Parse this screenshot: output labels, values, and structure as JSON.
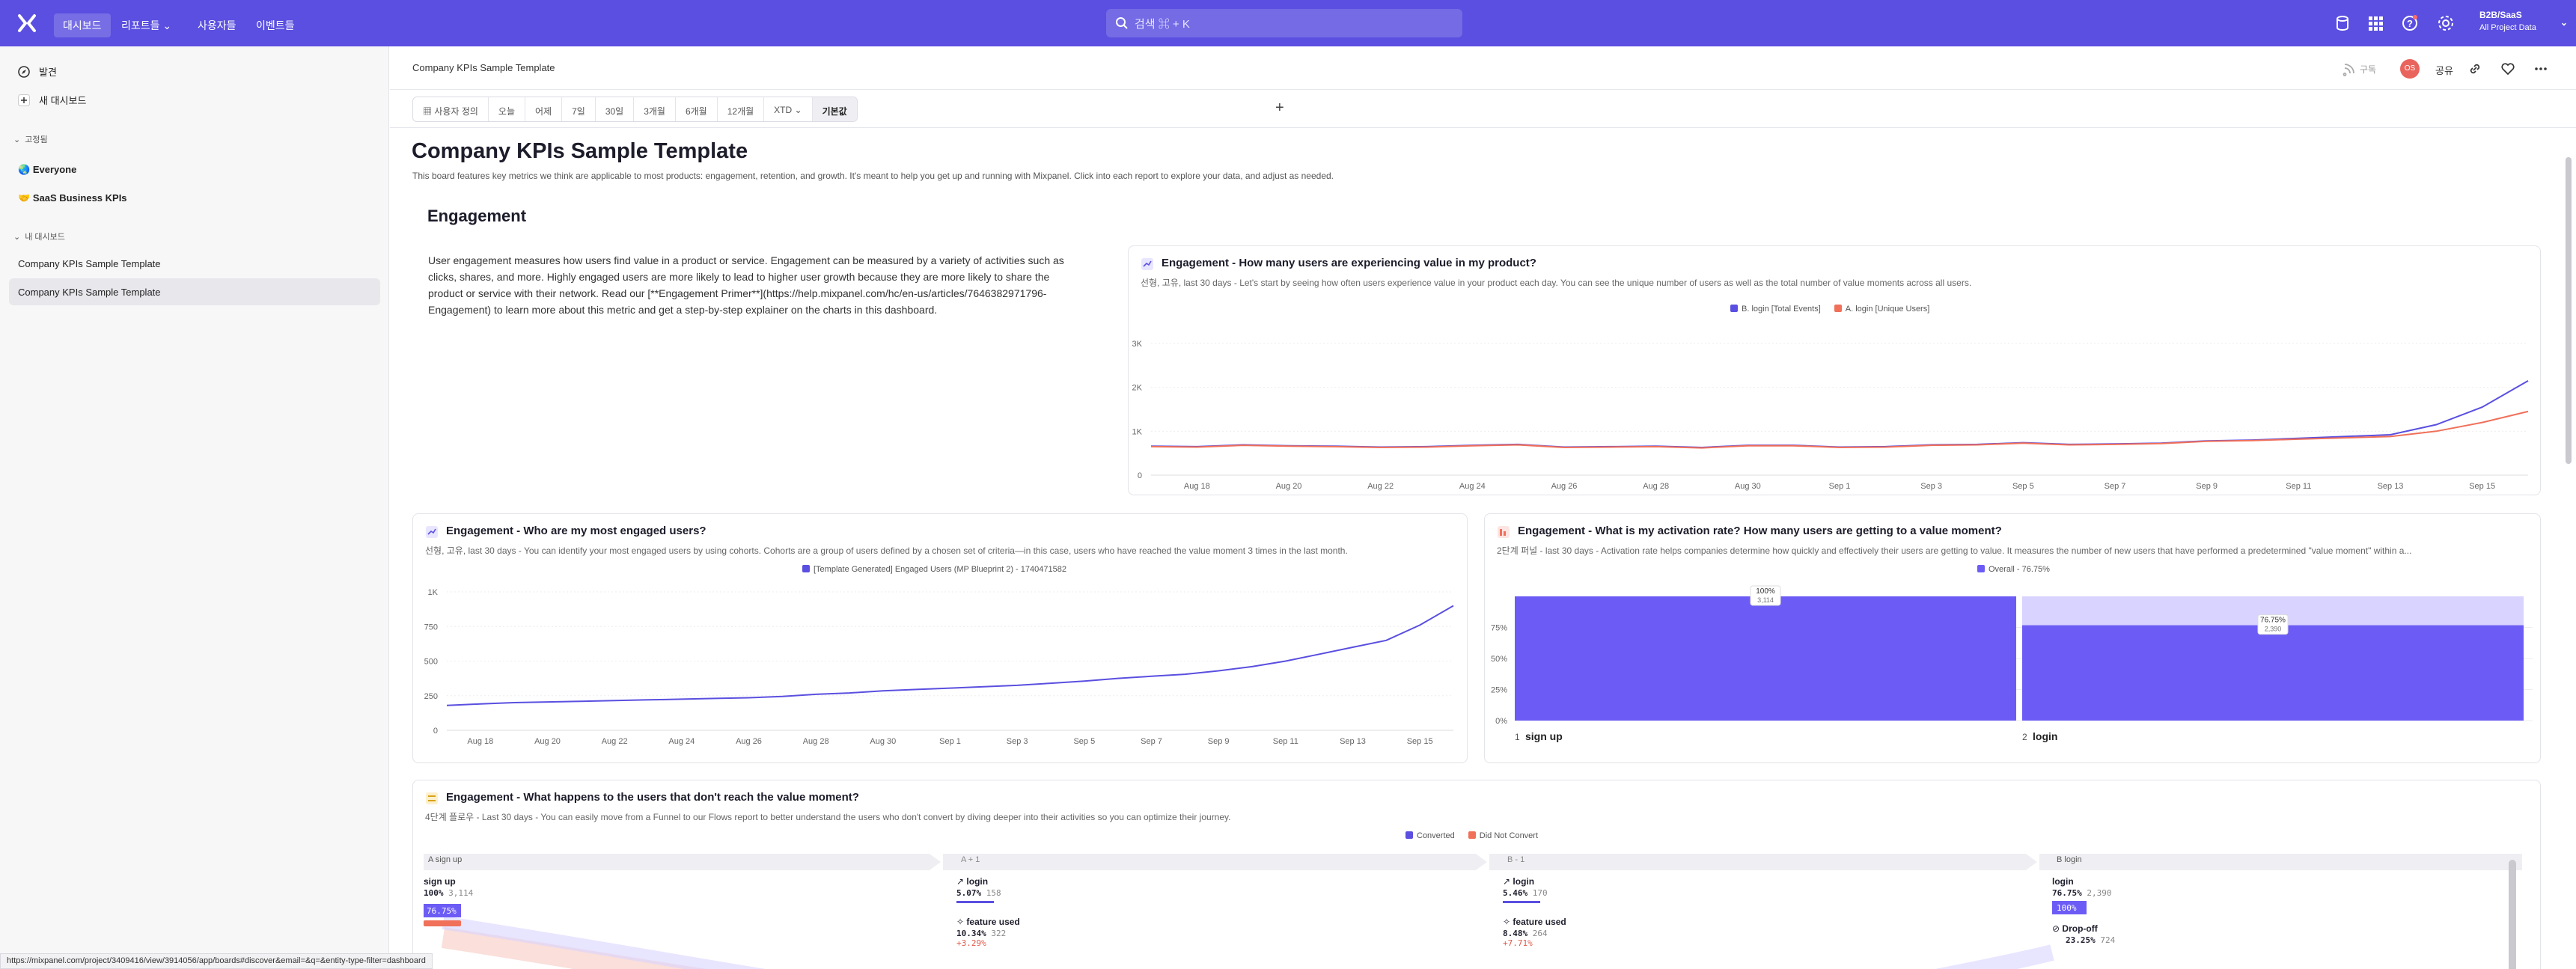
{
  "topbar": {
    "nav": [
      "대시보드",
      "리포트들",
      "사용자들",
      "이벤트들"
    ],
    "search_placeholder": "검색 ⌘ + K",
    "org_name": "B2B/SaaS",
    "org_sub": "All Project Data",
    "accent": "#5a4fe0"
  },
  "sidebar": {
    "top_items": [
      "발견",
      "새 대시보드"
    ],
    "pinned_header": "고정됨",
    "pinned": [
      "Everyone",
      "SaaS Business KPIs"
    ],
    "mine_header": "내 대시보드",
    "mine": [
      "Company KPIs Sample Template",
      "Company KPIs Sample Template"
    ]
  },
  "header": {
    "title": "Company KPIs Sample Template",
    "subscribe": "구독",
    "avatar": "OS",
    "share": "공유"
  },
  "datebar": {
    "items": [
      "사용자 정의",
      "오늘",
      "어제",
      "7일",
      "30일",
      "3개월",
      "6개월",
      "12개월",
      "XTD",
      "기본값"
    ],
    "selected": "기본값"
  },
  "board": {
    "title": "Company KPIs Sample Template",
    "description": "This board features key metrics we think are applicable to most products: engagement, retention, and growth. It's meant to help you get up and running with Mixpanel. Click into each report to explore your data, and adjust as needed.",
    "section": "Engagement",
    "intro": "User engagement measures how users find value in a product or service. Engagement can be measured by a variety of activities such as clicks, shares, and more. Highly engaged users are more likely to lead to higher user growth because they are more likely to share the product or service with their network. Read our [**Engagement Primer**](https://help.mixpanel.com/hc/en-us/articles/7646382971796-Engagement) to learn more about this metric and get a step-by-step explainer on the charts in this dashboard."
  },
  "cards": {
    "c1": {
      "title": "Engagement - How many users are experiencing value in my product?",
      "subtitle": "선형, 고유, last 30 days - Let's start by seeing how often users experience value in your product each day. You can see the unique number of users as well as the total number of value moments across all users."
    },
    "c2": {
      "title": "Engagement - Who are my most engaged users?",
      "subtitle": "선형, 고유, last 30 days - You can identify your most engaged users by using cohorts. Cohorts are a group of users defined by a chosen set of criteria—in this case, users who have reached the value moment 3 times in the last month."
    },
    "c3": {
      "title": "Engagement - What is my activation rate? How many users are getting to a value moment?",
      "subtitle": "2단계 퍼널 - last 30 days - Activation rate helps companies determine how quickly and effectively their users are getting to value. It measures the number of new users that have performed a predetermined \"value moment\" within a..."
    },
    "c4": {
      "title": "Engagement - What happens to the users that don't reach the value moment?",
      "subtitle": "4단계 플로우 - Last 30 days - You can easily move from a Funnel to our Flows report to better understand the users who don't convert by diving deeper into their activities so you can optimize their journey."
    }
  },
  "chart_data": [
    {
      "type": "line",
      "x": [
        "Aug 17",
        "Aug 18",
        "Aug 19",
        "Aug 20",
        "Aug 21",
        "Aug 22",
        "Aug 23",
        "Aug 24",
        "Aug 25",
        "Aug 26",
        "Aug 27",
        "Aug 28",
        "Aug 29",
        "Aug 30",
        "Aug 31",
        "Sep 1",
        "Sep 2",
        "Sep 3",
        "Sep 4",
        "Sep 5",
        "Sep 6",
        "Sep 7",
        "Sep 8",
        "Sep 9",
        "Sep 10",
        "Sep 11",
        "Sep 12",
        "Sep 13",
        "Sep 14",
        "Sep 15",
        "Sep 16"
      ],
      "x_ticks": [
        "Aug 18",
        "Aug 20",
        "Aug 22",
        "Aug 24",
        "Aug 26",
        "Aug 28",
        "Aug 30",
        "Sep 1",
        "Sep 3",
        "Sep 5",
        "Sep 7",
        "Sep 9",
        "Sep 11",
        "Sep 13",
        "Sep 15"
      ],
      "series": [
        {
          "name": "B. login [Total Events]",
          "color": "#5a4fe0",
          "values": [
            660,
            650,
            690,
            670,
            660,
            640,
            650,
            680,
            700,
            640,
            650,
            660,
            630,
            680,
            680,
            640,
            650,
            690,
            700,
            740,
            700,
            710,
            730,
            780,
            800,
            840,
            880,
            920,
            1150,
            1550,
            2150
          ]
        },
        {
          "name": "A. login [Unique Users]",
          "color": "#f0705a",
          "values": [
            650,
            640,
            680,
            660,
            650,
            630,
            640,
            670,
            690,
            630,
            640,
            650,
            620,
            670,
            670,
            630,
            640,
            680,
            690,
            730,
            690,
            700,
            720,
            770,
            790,
            820,
            850,
            880,
            1000,
            1200,
            1450
          ]
        }
      ],
      "ylim": [
        0,
        3000
      ],
      "y_ticks": [
        "0",
        "1K",
        "2K",
        "3K"
      ]
    },
    {
      "type": "line",
      "x": [
        "Aug 17",
        "Aug 18",
        "Aug 19",
        "Aug 20",
        "Aug 21",
        "Aug 22",
        "Aug 23",
        "Aug 24",
        "Aug 25",
        "Aug 26",
        "Aug 27",
        "Aug 28",
        "Aug 29",
        "Aug 30",
        "Aug 31",
        "Sep 1",
        "Sep 2",
        "Sep 3",
        "Sep 4",
        "Sep 5",
        "Sep 6",
        "Sep 7",
        "Sep 8",
        "Sep 9",
        "Sep 10",
        "Sep 11",
        "Sep 12",
        "Sep 13",
        "Sep 14",
        "Sep 15",
        "Sep 16"
      ],
      "x_ticks": [
        "Aug 18",
        "Aug 20",
        "Aug 22",
        "Aug 24",
        "Aug 26",
        "Aug 28",
        "Aug 30",
        "Sep 1",
        "Sep 3",
        "Sep 5",
        "Sep 7",
        "Sep 9",
        "Sep 11",
        "Sep 13",
        "Sep 15"
      ],
      "series": [
        {
          "name": "[Template Generated] Engaged Users (MP Blueprint 2) - 1740471582",
          "color": "#5a4fe0",
          "values": [
            180,
            190,
            200,
            205,
            210,
            215,
            220,
            225,
            230,
            235,
            245,
            260,
            270,
            285,
            295,
            305,
            315,
            325,
            340,
            355,
            375,
            390,
            405,
            430,
            460,
            500,
            550,
            600,
            650,
            760,
            900
          ]
        }
      ],
      "ylim": [
        0,
        1000
      ],
      "y_ticks": [
        "0",
        "250",
        "500",
        "750",
        "1K"
      ]
    },
    {
      "type": "bar",
      "categories": [
        "sign up",
        "login"
      ],
      "step_labels": [
        "1",
        "2"
      ],
      "series": [
        {
          "name": "Overall - 76.75%",
          "color": "#6c5cf5",
          "values": [
            100,
            76.75
          ]
        }
      ],
      "value_labels": [
        "100%",
        "76.75%"
      ],
      "count_labels": [
        "3,114",
        "2,390"
      ],
      "y_ticks": [
        "0%",
        "25%",
        "50%",
        "75%"
      ],
      "ylim": [
        0,
        100
      ]
    }
  ],
  "flow": {
    "legend": [
      "Converted",
      "Did Not Convert"
    ],
    "legend_colors": [
      "#5a4fe0",
      "#f0705a"
    ],
    "steps": [
      "A  sign up",
      "A + 1",
      "B - 1",
      "B  login"
    ],
    "col0": {
      "name": "sign up",
      "pct": "100%",
      "count": "3,114",
      "badge": "76.75%"
    },
    "col1": [
      {
        "name": "login",
        "pct": "5.07%",
        "count": "158"
      },
      {
        "name": "feature used",
        "pct": "10.34%",
        "count": "322",
        "delta": "+3.29%"
      }
    ],
    "col2": [
      {
        "name": "login",
        "pct": "5.46%",
        "count": "170"
      },
      {
        "name": "feature used",
        "pct": "8.48%",
        "count": "264",
        "delta": "+7.71%"
      }
    ],
    "col3": [
      {
        "name": "login",
        "pct": "76.75%",
        "count": "2,390",
        "badge": "100%"
      },
      {
        "name": "Drop-off",
        "pct": "23.25%",
        "count": "724"
      }
    ]
  },
  "statusbar": "https://mixpanel.com/project/3409416/view/3914056/app/boards#discover&email=&q=&entity-type-filter=dashboard"
}
